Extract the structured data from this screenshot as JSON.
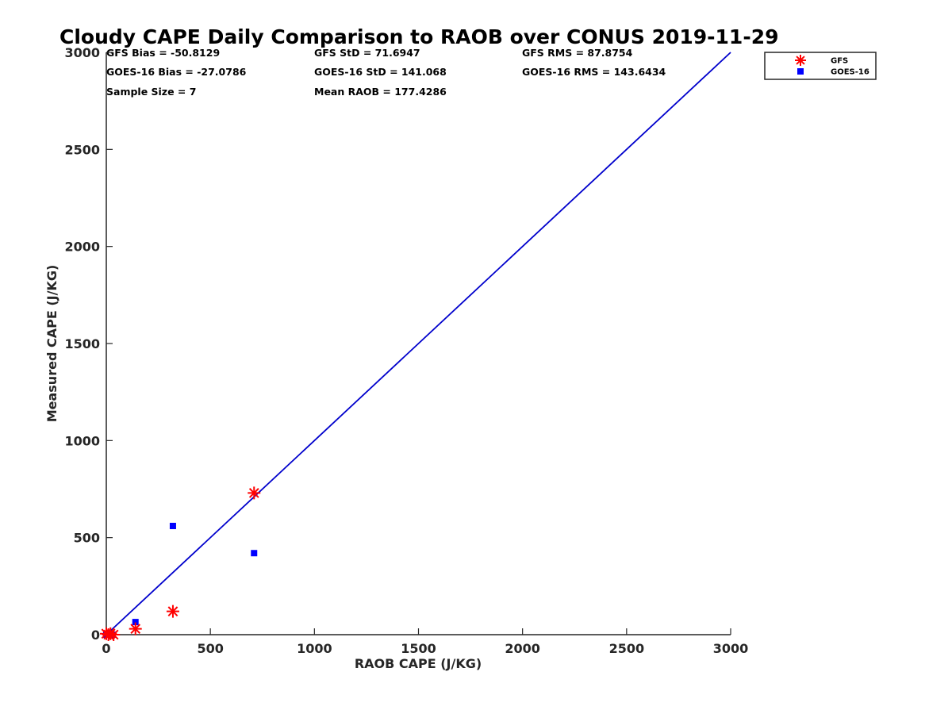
{
  "chart_data": {
    "type": "scatter",
    "title": "Cloudy CAPE Daily Comparison to RAOB over CONUS 2019-11-29",
    "xlabel": "RAOB CAPE (J/KG)",
    "ylabel": "Measured CAPE (J/KG)",
    "xlim": [
      0,
      3000
    ],
    "ylim": [
      0,
      3000
    ],
    "x_ticks": [
      "0",
      "500",
      "1000",
      "1500",
      "2000",
      "2500",
      "3000"
    ],
    "y_ticks": [
      "0",
      "500",
      "1000",
      "1500",
      "2000",
      "2500",
      "3000"
    ],
    "grid": false,
    "legend_position": "outside-top-right",
    "one_to_one_line": {
      "x": [
        0,
        3000
      ],
      "y": [
        0,
        3000
      ],
      "color": "#0000cc"
    },
    "series": [
      {
        "name": "GFS",
        "marker": "asterisk",
        "color": "#ff0000",
        "points": [
          [
            0,
            5
          ],
          [
            10,
            0
          ],
          [
            20,
            5
          ],
          [
            35,
            0
          ],
          [
            140,
            30
          ],
          [
            320,
            120
          ],
          [
            710,
            730
          ]
        ]
      },
      {
        "name": "GOES-16",
        "marker": "square",
        "color": "#0000ff",
        "points": [
          [
            0,
            0
          ],
          [
            10,
            0
          ],
          [
            20,
            0
          ],
          [
            30,
            0
          ],
          [
            140,
            65
          ],
          [
            320,
            560
          ],
          [
            710,
            420
          ]
        ]
      }
    ],
    "annotations": [
      [
        "GFS Bias = -50.8129",
        "GFS StD = 71.6947",
        "GFS RMS = 87.8754"
      ],
      [
        "GOES-16 Bias = -27.0786",
        "GOES-16 StD = 141.068",
        "GOES-16 RMS = 143.6434"
      ],
      [
        "Sample Size = 7",
        "Mean RAOB = 177.4286"
      ]
    ]
  }
}
